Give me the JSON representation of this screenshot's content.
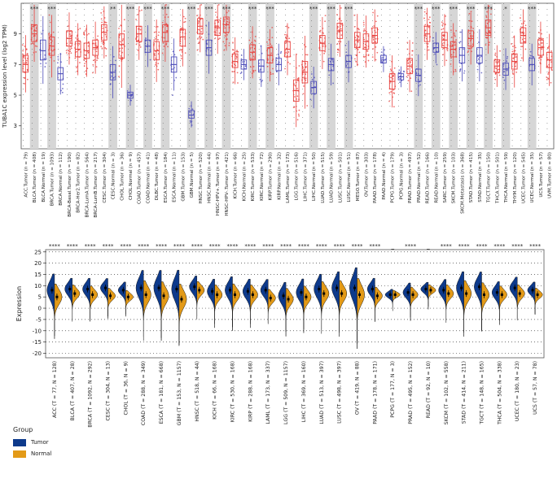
{
  "colors": {
    "tumor_point": "#e8423e",
    "normal_point": "#4a4ab8",
    "sig_band": "#d6d6d6",
    "tumor_violin": "#0d3a8c",
    "normal_violin": "#e39a17"
  },
  "chart_data": [
    {
      "type": "box",
      "ylabel": "TUBA1C expression level (log2 TPM)",
      "ylim": [
        1.5,
        11
      ],
      "yticks": [
        3,
        5,
        7,
        9
      ],
      "grid": false,
      "groups": [
        {
          "label": "ACC.Tumor (n = 79)",
          "kind": "tumor",
          "median": 7.0,
          "q1": 6.5,
          "q3": 7.6,
          "sig": ""
        },
        {
          "label": "BLCA.Tumor (n = 408)",
          "kind": "tumor",
          "median": 9.0,
          "q1": 8.5,
          "q3": 9.6,
          "sig": "***"
        },
        {
          "label": "BLCA.Normal (n = 19)",
          "kind": "normal",
          "median": 7.9,
          "q1": 7.3,
          "q3": 8.6,
          "sig": ""
        },
        {
          "label": "BRCA.Tumor (n = 1093)",
          "kind": "tumor",
          "median": 8.2,
          "q1": 7.6,
          "q3": 8.8,
          "sig": "***"
        },
        {
          "label": "BRCA.Normal (n = 112)",
          "kind": "normal",
          "median": 6.4,
          "q1": 6.0,
          "q3": 6.8,
          "sig": ""
        },
        {
          "label": "BRCA-Basal.Tumor (n = 190)",
          "kind": "tumor",
          "median": 8.7,
          "q1": 8.2,
          "q3": 9.2,
          "sig": ""
        },
        {
          "label": "BRCA-Her2.Tumor (n = 82)",
          "kind": "tumor",
          "median": 8.0,
          "q1": 7.5,
          "q3": 8.5,
          "sig": ""
        },
        {
          "label": "BRCA-LumA.Tumor (n = 564)",
          "kind": "tumor",
          "median": 7.9,
          "q1": 7.4,
          "q3": 8.4,
          "sig": ""
        },
        {
          "label": "BRCA-LumB.Tumor (n = 217)",
          "kind": "tumor",
          "median": 8.1,
          "q1": 7.6,
          "q3": 8.6,
          "sig": ""
        },
        {
          "label": "CESC.Tumor (n = 304)",
          "kind": "tumor",
          "median": 9.1,
          "q1": 8.6,
          "q3": 9.6,
          "sig": ""
        },
        {
          "label": "CESC.Normal (n = 3)",
          "kind": "normal",
          "median": 6.5,
          "q1": 6.0,
          "q3": 7.0,
          "sig": "**"
        },
        {
          "label": "CHOL.Tumor (n = 36)",
          "kind": "tumor",
          "median": 8.3,
          "q1": 7.4,
          "q3": 9.0,
          "sig": ""
        },
        {
          "label": "CHOL.Normal (n = 9)",
          "kind": "normal",
          "median": 5.0,
          "q1": 4.8,
          "q3": 5.2,
          "sig": "***"
        },
        {
          "label": "COAD.Tumor (n = 457)",
          "kind": "tumor",
          "median": 9.0,
          "q1": 8.5,
          "q3": 9.5,
          "sig": ""
        },
        {
          "label": "COAD.Normal (n = 41)",
          "kind": "normal",
          "median": 8.2,
          "q1": 7.8,
          "q3": 8.6,
          "sig": "***"
        },
        {
          "label": "DLBC.Tumor (n = 48)",
          "kind": "tumor",
          "median": 7.9,
          "q1": 7.3,
          "q3": 8.5,
          "sig": ""
        },
        {
          "label": "ESCA.Tumor (n = 184)",
          "kind": "tumor",
          "median": 9.1,
          "q1": 8.5,
          "q3": 9.6,
          "sig": "***"
        },
        {
          "label": "ESCA.Normal (n = 11)",
          "kind": "normal",
          "median": 7.0,
          "q1": 6.5,
          "q3": 7.5,
          "sig": ""
        },
        {
          "label": "GBM.Tumor (n = 153)",
          "kind": "tumor",
          "median": 8.8,
          "q1": 8.2,
          "q3": 9.3,
          "sig": ""
        },
        {
          "label": "GBM.Normal (n = 5)",
          "kind": "normal",
          "median": 3.7,
          "q1": 3.5,
          "q3": 4.0,
          "sig": "***"
        },
        {
          "label": "HNSC.Tumor (n = 520)",
          "kind": "tumor",
          "median": 9.5,
          "q1": 9.0,
          "q3": 10.0,
          "sig": ""
        },
        {
          "label": "HNSC.Normal (n = 44)",
          "kind": "normal",
          "median": 8.1,
          "q1": 7.6,
          "q3": 8.6,
          "sig": "***"
        },
        {
          "label": "HNSC-HPV+.Tumor (n = 97)",
          "kind": "tumor",
          "median": 9.4,
          "q1": 8.9,
          "q3": 9.9,
          "sig": ""
        },
        {
          "label": "HNSC-HPV-.Tumor (n = 421)",
          "kind": "tumor",
          "median": 9.6,
          "q1": 9.1,
          "q3": 10.1,
          "sig": "***"
        },
        {
          "label": "KICH.Tumor (n = 66)",
          "kind": "tumor",
          "median": 7.2,
          "q1": 6.8,
          "q3": 7.7,
          "sig": ""
        },
        {
          "label": "KICH.Normal (n = 25)",
          "kind": "normal",
          "median": 7.0,
          "q1": 6.7,
          "q3": 7.3,
          "sig": ""
        },
        {
          "label": "KIRC.Tumor (n = 533)",
          "kind": "tumor",
          "median": 7.8,
          "q1": 7.3,
          "q3": 8.3,
          "sig": "***"
        },
        {
          "label": "KIRC.Normal (n = 72)",
          "kind": "normal",
          "median": 6.9,
          "q1": 6.5,
          "q3": 7.3,
          "sig": ""
        },
        {
          "label": "KIRP.Tumor (n = 290)",
          "kind": "tumor",
          "median": 7.6,
          "q1": 7.1,
          "q3": 8.1,
          "sig": "***"
        },
        {
          "label": "KIRP.Normal (n = 32)",
          "kind": "normal",
          "median": 7.0,
          "q1": 6.6,
          "q3": 7.4,
          "sig": ""
        },
        {
          "label": "LAML.Tumor (n = 173)",
          "kind": "tumor",
          "median": 8.0,
          "q1": 7.5,
          "q3": 8.5,
          "sig": ""
        },
        {
          "label": "LGG.Tumor (n = 516)",
          "kind": "tumor",
          "median": 5.3,
          "q1": 4.6,
          "q3": 6.0,
          "sig": ""
        },
        {
          "label": "LIHC.Tumor (n = 371)",
          "kind": "tumor",
          "median": 6.5,
          "q1": 5.8,
          "q3": 7.2,
          "sig": ""
        },
        {
          "label": "LIHC.Normal (n = 50)",
          "kind": "normal",
          "median": 5.5,
          "q1": 5.1,
          "q3": 5.9,
          "sig": "***"
        },
        {
          "label": "LUAD.Tumor (n = 515)",
          "kind": "tumor",
          "median": 8.4,
          "q1": 7.9,
          "q3": 8.9,
          "sig": ""
        },
        {
          "label": "LUAD.Normal (n = 59)",
          "kind": "normal",
          "median": 7.0,
          "q1": 6.6,
          "q3": 7.4,
          "sig": "***"
        },
        {
          "label": "LUSC.Tumor (n = 501)",
          "kind": "tumor",
          "median": 9.2,
          "q1": 8.7,
          "q3": 9.7,
          "sig": ""
        },
        {
          "label": "LUSC.Normal (n = 51)",
          "kind": "normal",
          "median": 7.2,
          "q1": 6.8,
          "q3": 7.6,
          "sig": "***"
        },
        {
          "label": "MESO.Tumor (n = 87)",
          "kind": "tumor",
          "median": 8.6,
          "q1": 8.1,
          "q3": 9.1,
          "sig": ""
        },
        {
          "label": "OV.Tumor (n = 303)",
          "kind": "tumor",
          "median": 8.5,
          "q1": 8.0,
          "q3": 9.0,
          "sig": ""
        },
        {
          "label": "PAAD.Tumor (n = 178)",
          "kind": "tumor",
          "median": 8.9,
          "q1": 8.4,
          "q3": 9.4,
          "sig": ""
        },
        {
          "label": "PAAD.Normal (n = 4)",
          "kind": "normal",
          "median": 7.3,
          "q1": 7.1,
          "q3": 7.6,
          "sig": ""
        },
        {
          "label": "PCPG.Tumor (n = 179)",
          "kind": "tumor",
          "median": 5.9,
          "q1": 5.4,
          "q3": 6.4,
          "sig": ""
        },
        {
          "label": "PCPG.Normal (n = 3)",
          "kind": "normal",
          "median": 6.2,
          "q1": 6.0,
          "q3": 6.4,
          "sig": ""
        },
        {
          "label": "PRAD.Tumor (n = 497)",
          "kind": "tumor",
          "median": 6.9,
          "q1": 6.4,
          "q3": 7.4,
          "sig": ""
        },
        {
          "label": "PRAD.Normal (n = 52)",
          "kind": "normal",
          "median": 6.3,
          "q1": 5.9,
          "q3": 6.7,
          "sig": "***"
        },
        {
          "label": "READ.Tumor (n = 166)",
          "kind": "tumor",
          "median": 9.0,
          "q1": 8.5,
          "q3": 9.5,
          "sig": ""
        },
        {
          "label": "READ.Normal (n = 10)",
          "kind": "normal",
          "median": 8.1,
          "q1": 7.8,
          "q3": 8.4,
          "sig": "***"
        },
        {
          "label": "SARC.Tumor (n = 259)",
          "kind": "tumor",
          "median": 8.6,
          "q1": 8.1,
          "q3": 9.1,
          "sig": ""
        },
        {
          "label": "SKCM.Tumor (n = 103)",
          "kind": "tumor",
          "median": 8.0,
          "q1": 7.5,
          "q3": 8.5,
          "sig": "***"
        },
        {
          "label": "SKCM.Metastasis (n = 368)",
          "kind": "normal",
          "median": 7.6,
          "q1": 7.1,
          "q3": 8.1,
          "sig": ""
        },
        {
          "label": "STAD.Tumor (n = 415)",
          "kind": "tumor",
          "median": 8.7,
          "q1": 8.2,
          "q3": 9.2,
          "sig": "***"
        },
        {
          "label": "STAD.Normal (n = 35)",
          "kind": "normal",
          "median": 7.6,
          "q1": 7.1,
          "q3": 8.1,
          "sig": ""
        },
        {
          "label": "TGCT.Tumor (n = 150)",
          "kind": "tumor",
          "median": 9.4,
          "q1": 8.9,
          "q3": 9.9,
          "sig": "***"
        },
        {
          "label": "THCA.Tumor (n = 501)",
          "kind": "tumor",
          "median": 6.9,
          "q1": 6.5,
          "q3": 7.3,
          "sig": ""
        },
        {
          "label": "THCA.Normal (n = 59)",
          "kind": "normal",
          "median": 6.7,
          "q1": 6.3,
          "q3": 7.1,
          "sig": "*"
        },
        {
          "label": "THYM.Tumor (n = 120)",
          "kind": "tumor",
          "median": 7.2,
          "q1": 6.7,
          "q3": 7.7,
          "sig": ""
        },
        {
          "label": "UCEC.Tumor (n = 545)",
          "kind": "tumor",
          "median": 8.9,
          "q1": 8.4,
          "q3": 9.4,
          "sig": ""
        },
        {
          "label": "UCEC.Normal (n = 35)",
          "kind": "normal",
          "median": 7.0,
          "q1": 6.6,
          "q3": 7.4,
          "sig": "***"
        },
        {
          "label": "UCS.Tumor (n = 57)",
          "kind": "tumor",
          "median": 8.1,
          "q1": 7.6,
          "q3": 8.6,
          "sig": ""
        },
        {
          "label": "UVM.Tumor (n = 80)",
          "kind": "tumor",
          "median": 7.3,
          "q1": 6.8,
          "q3": 7.8,
          "sig": ""
        }
      ]
    },
    {
      "type": "violin",
      "ylabel": "Expression",
      "ylim": [
        -22,
        26
      ],
      "yticks": [
        -20,
        -15,
        -10,
        -5,
        0,
        5,
        10,
        15,
        20,
        25
      ],
      "grid": true,
      "legend": {
        "title": "Group",
        "position": "bottom-left",
        "entries": [
          "Tumor",
          "Normal"
        ]
      },
      "categories": [
        {
          "label": "ACC (T = 77, N = 128)",
          "sig": "****",
          "tumor": 8.0,
          "normal": 5.0,
          "spread": 12
        },
        {
          "label": "BLCA (T = 407, N = 28)",
          "sig": "****",
          "tumor": 8.5,
          "normal": 6.5,
          "spread": 8
        },
        {
          "label": "BRCA (T = 1092, N = 292)",
          "sig": "****",
          "tumor": 8.5,
          "normal": 6.0,
          "spread": 8
        },
        {
          "label": "CESC (T = 304, N = 13)",
          "sig": "****",
          "tumor": 9.0,
          "normal": 5.5,
          "spread": 7
        },
        {
          "label": "CHOL (T = 36, N = 9)",
          "sig": "****",
          "tumor": 8.0,
          "normal": 5.0,
          "spread": 6
        },
        {
          "label": "COAD (T = 288, N = 349)",
          "sig": "****",
          "tumor": 9.0,
          "normal": 6.0,
          "spread": 13
        },
        {
          "label": "ESCA (T = 181, N = 668)",
          "sig": "****",
          "tumor": 9.0,
          "normal": 5.5,
          "spread": 13
        },
        {
          "label": "GBM (T = 153, N = 1157)",
          "sig": "****",
          "tumor": 8.5,
          "normal": 4.0,
          "spread": 14
        },
        {
          "label": "HNSC (T = 518, N = 44)",
          "sig": "****",
          "tumor": 9.5,
          "normal": 8.0,
          "spread": 8
        },
        {
          "label": "KICH (T = 66, N = 168)",
          "sig": "****",
          "tumor": 7.5,
          "normal": 6.0,
          "spread": 9
        },
        {
          "label": "KIRC (T = 530, N = 168)",
          "sig": "****",
          "tumor": 8.0,
          "normal": 6.0,
          "spread": 10
        },
        {
          "label": "KIRP (T = 288, N = 168)",
          "sig": "****",
          "tumor": 7.5,
          "normal": 6.0,
          "spread": 9
        },
        {
          "label": "LAML (T = 173, N = 337)",
          "sig": "****",
          "tumor": 8.0,
          "normal": 4.5,
          "spread": 8
        },
        {
          "label": "LGG (T = 509, N = 1157)",
          "sig": "****",
          "tumor": 5.5,
          "normal": 4.0,
          "spread": 10
        },
        {
          "label": "LIHC (T = 369, N = 160)",
          "sig": "****",
          "tumor": 7.0,
          "normal": 5.0,
          "spread": 10
        },
        {
          "label": "LUAD (T = 513, N = 397)",
          "sig": "****",
          "tumor": 8.5,
          "normal": 6.5,
          "spread": 11
        },
        {
          "label": "LUSC (T = 498, N = 397)",
          "sig": "****",
          "tumor": 9.0,
          "normal": 6.5,
          "spread": 12
        },
        {
          "label": "OV (T = 419, N = 88)",
          "sig": "****",
          "tumor": 9.0,
          "normal": 6.0,
          "spread": 15
        },
        {
          "label": "PAAD (T = 178, N = 171)",
          "sig": "****",
          "tumor": 8.5,
          "normal": 5.5,
          "spread": 8
        },
        {
          "label": "PCPG (T = 177, N = 3)",
          "sig": "_",
          "tumor": 6.0,
          "normal": 6.0,
          "spread": 4
        },
        {
          "label": "PRAD (T = 495, N = 152)",
          "sig": "****",
          "tumor": 7.0,
          "normal": 6.0,
          "spread": 7
        },
        {
          "label": "READ (T = 92, N = 10)",
          "sig": "_",
          "tumor": 8.5,
          "normal": 8.0,
          "spread": 5
        },
        {
          "label": "SKCM (T = 102, N = 558)",
          "sig": "****",
          "tumor": 8.0,
          "normal": 6.5,
          "spread": 8
        },
        {
          "label": "STAD (T = 414, N = 211)",
          "sig": "****",
          "tumor": 9.0,
          "normal": 6.5,
          "spread": 12
        },
        {
          "label": "TGCT (T = 148, N = 165)",
          "sig": "****",
          "tumor": 9.5,
          "normal": 6.0,
          "spread": 11
        },
        {
          "label": "THCA (T = 504, N = 338)",
          "sig": "****",
          "tumor": 7.0,
          "normal": 6.0,
          "spread": 8
        },
        {
          "label": "UCEC (T = 180, N = 23)",
          "sig": "****",
          "tumor": 9.0,
          "normal": 6.5,
          "spread": 8
        },
        {
          "label": "UCS (T = 57, N = 78)",
          "sig": "****",
          "tumor": 8.0,
          "normal": 6.0,
          "spread": 6
        }
      ]
    }
  ]
}
